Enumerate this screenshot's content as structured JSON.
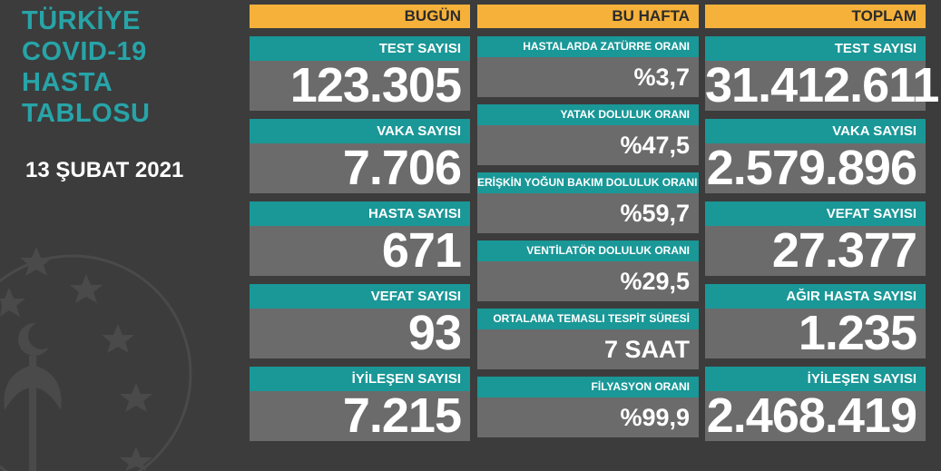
{
  "title": {
    "line1": "TÜRKİYE",
    "line2": "COVID-19",
    "line3": "HASTA",
    "line4": "TABLOSU"
  },
  "date": "13 ŞUBAT 2021",
  "colors": {
    "background": "#3c3c3c",
    "header": "#f6b13a",
    "label": "#1a9797",
    "value_bg": "#6b6b6b",
    "title": "#27a4a8"
  },
  "today": {
    "header": "BUGÜN",
    "cards": [
      {
        "label": "TEST SAYISI",
        "value": "123.305"
      },
      {
        "label": "VAKA SAYISI",
        "value": "7.706"
      },
      {
        "label": "HASTA SAYISI",
        "value": "671"
      },
      {
        "label": "VEFAT SAYISI",
        "value": "93"
      },
      {
        "label": "İYİLEŞEN SAYISI",
        "value": "7.215"
      }
    ]
  },
  "week": {
    "header": "BU HAFTA",
    "cards": [
      {
        "label": "HASTALARDA ZATÜRRE ORANI",
        "value": "%3,7"
      },
      {
        "label": "YATAK DOLULUK ORANI",
        "value": "%47,5"
      },
      {
        "label": "ERİŞKİN YOĞUN BAKIM DOLULUK ORANI",
        "value": "%59,7"
      },
      {
        "label": "VENTİLATÖR DOLULUK ORANI",
        "value": "%29,5"
      },
      {
        "label": "ORTALAMA TEMASLI TESPİT SÜRESİ",
        "value": "7 SAAT"
      },
      {
        "label": "FİLYASYON ORANI",
        "value": "%99,9"
      }
    ]
  },
  "total": {
    "header": "TOPLAM",
    "cards": [
      {
        "label": "TEST SAYISI",
        "value": "31.412.611"
      },
      {
        "label": "VAKA SAYISI",
        "value": "2.579.896"
      },
      {
        "label": "VEFAT SAYISI",
        "value": "27.377"
      },
      {
        "label": "AĞIR HASTA SAYISI",
        "value": "1.235"
      },
      {
        "label": "İYİLEŞEN SAYISI",
        "value": "2.468.419"
      }
    ]
  }
}
